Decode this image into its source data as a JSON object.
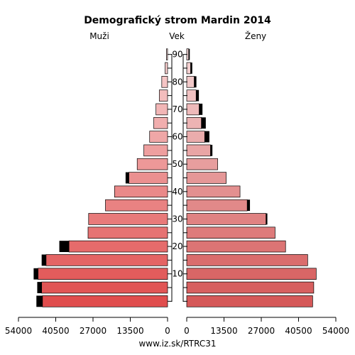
{
  "chart_data": {
    "type": "bar",
    "title": "Demografický strom Mardin 2014",
    "left_label": "Muži",
    "center_label": "Vek",
    "right_label": "Ženy",
    "footer": "www.iz.sk/RTRC31",
    "age_groups": [
      "0-4",
      "5-9",
      "10-14",
      "15-19",
      "20-24",
      "25-29",
      "30-34",
      "35-39",
      "40-44",
      "45-49",
      "50-54",
      "55-59",
      "60-64",
      "65-69",
      "70-74",
      "75-79",
      "80-84",
      "85-89",
      "90+"
    ],
    "age_tick_labels": [
      "10",
      "20",
      "30",
      "40",
      "50",
      "60",
      "70",
      "80",
      "90"
    ],
    "age_tick_values": [
      10,
      20,
      30,
      40,
      50,
      60,
      70,
      80,
      90
    ],
    "x_tick_labels_left": [
      "54000",
      "40500",
      "27000",
      "13500",
      "0"
    ],
    "x_tick_labels_right": [
      "0",
      "13500",
      "27000",
      "40500",
      "54000"
    ],
    "x_range": [
      0,
      54000
    ],
    "series": [
      {
        "name": "Muži",
        "values": [
          45300,
          45600,
          46900,
          44000,
          35700,
          28800,
          28600,
          22500,
          19200,
          14000,
          11000,
          8600,
          6500,
          5000,
          4200,
          3000,
          2100,
          900,
          400
        ],
        "extra": [
          2200,
          1600,
          1600,
          1600,
          3500,
          0,
          0,
          0,
          0,
          1200,
          0,
          0,
          0,
          0,
          0,
          0,
          0,
          0,
          0
        ]
      },
      {
        "name": "Ženy",
        "values": [
          45600,
          46000,
          46900,
          43800,
          35800,
          32000,
          28700,
          21900,
          19300,
          14300,
          11200,
          8600,
          6500,
          5300,
          4500,
          3400,
          2700,
          1400,
          700
        ],
        "extra": [
          0,
          0,
          0,
          0,
          0,
          0,
          500,
          1000,
          0,
          0,
          0,
          700,
          1700,
          1600,
          1200,
          1000,
          800,
          600,
          400
        ]
      }
    ]
  }
}
